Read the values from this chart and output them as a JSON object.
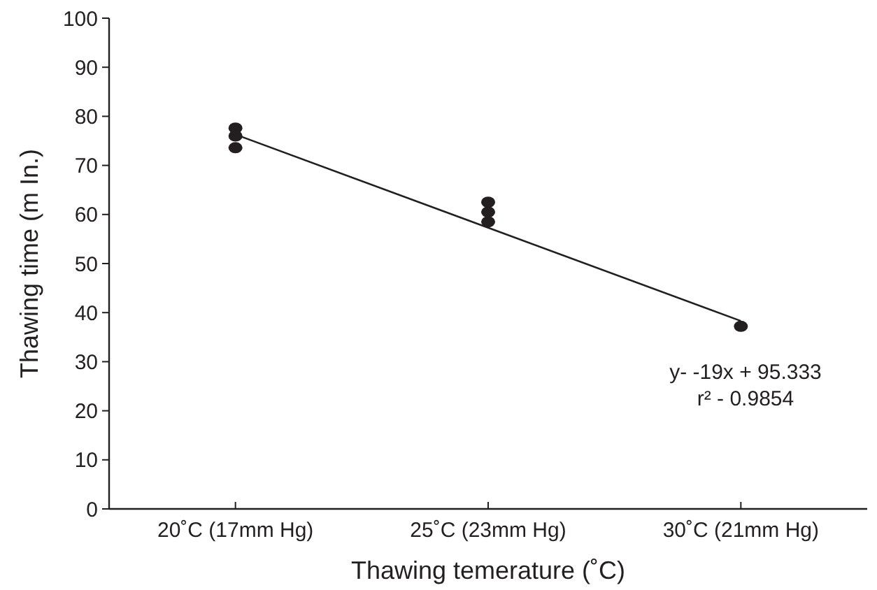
{
  "chart_data": {
    "type": "scatter",
    "xlabel": "Thawing temerature (˚C)",
    "ylabel": "Thawing time (m In.)",
    "categories": [
      "20˚C (17mm Hg)",
      "25˚C (23mm Hg)",
      "30˚C (21mm Hg)"
    ],
    "ylim": [
      0,
      100
    ],
    "yticks": [
      0,
      10,
      20,
      30,
      40,
      50,
      60,
      70,
      80,
      90,
      100
    ],
    "series": [
      {
        "color": "#231f20",
        "x": [
          "20˚C (17mm Hg)",
          "20˚C (17mm Hg)",
          "20˚C (17mm Hg)",
          "25˚C (23mm Hg)",
          "25˚C (23mm Hg)",
          "25˚C (23mm Hg)",
          "30˚C (21mm Hg)"
        ],
        "values": [
          77.6,
          76,
          73.6,
          62.5,
          60.5,
          58.5,
          37.2
        ]
      },
      {
        "type": "line",
        "color": "#231f20",
        "marker": "none",
        "values": [
          76.3,
          57.3,
          38.3
        ]
      }
    ],
    "marker": "circle",
    "grid": false,
    "annotations": [
      "y- -19x + 95.333",
      "r² - 0.9854"
    ]
  }
}
